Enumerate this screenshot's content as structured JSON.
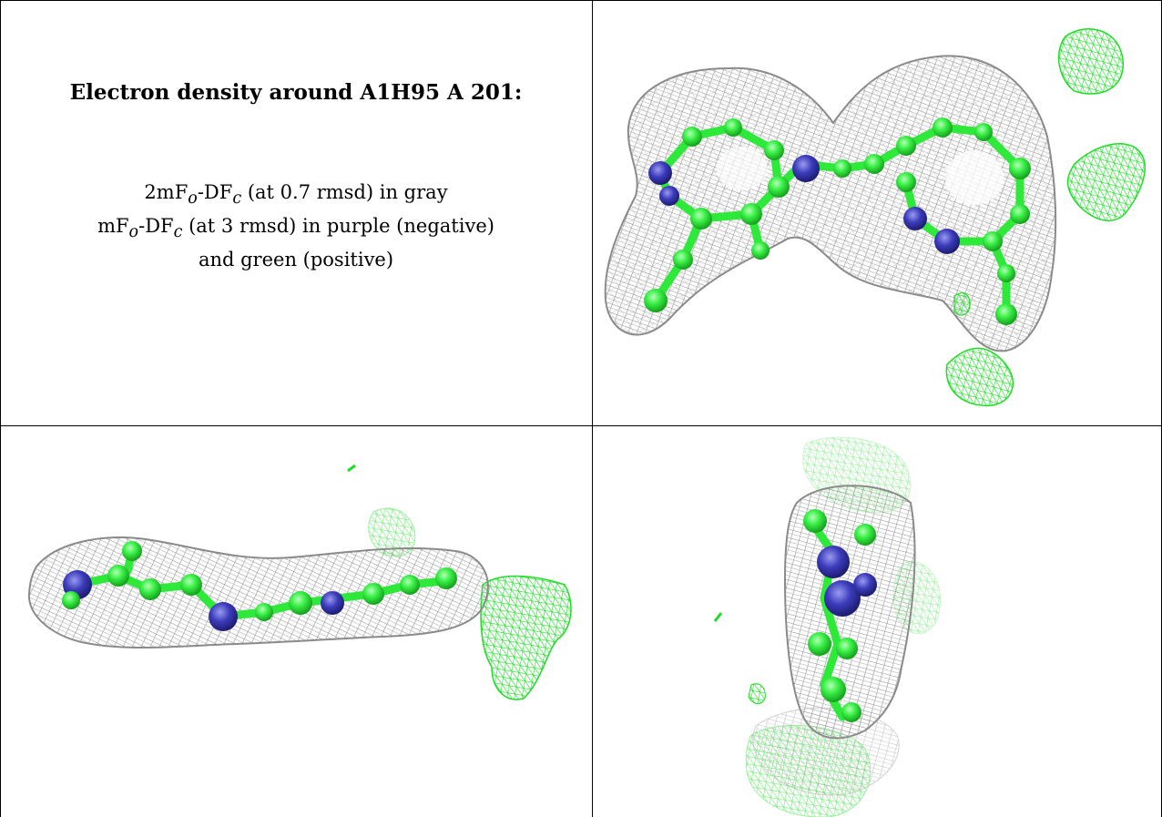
{
  "header": {
    "title": "Electron density around A1H95 A 201:"
  },
  "legend": {
    "line1": {
      "prefix": "2mF",
      "sub_o": "o",
      "mid": "-DF",
      "sub_c": "c",
      "suffix": " (at 0.7 rmsd) in gray"
    },
    "line2": {
      "prefix": "mF",
      "sub_o": "o",
      "mid": "-DF",
      "sub_c": "c",
      "suffix": " (at 3 rmsd) in purple (negative)"
    },
    "line3": "and green (positive)"
  },
  "colors": {
    "mesh_gray": "#9a9a9a",
    "mesh_green": "#22e02a",
    "atom_carbon": "#33ee44",
    "atom_nitrogen": "#3a3ab8",
    "border": "#000000"
  },
  "views": [
    "view-front",
    "view-side",
    "view-end"
  ]
}
